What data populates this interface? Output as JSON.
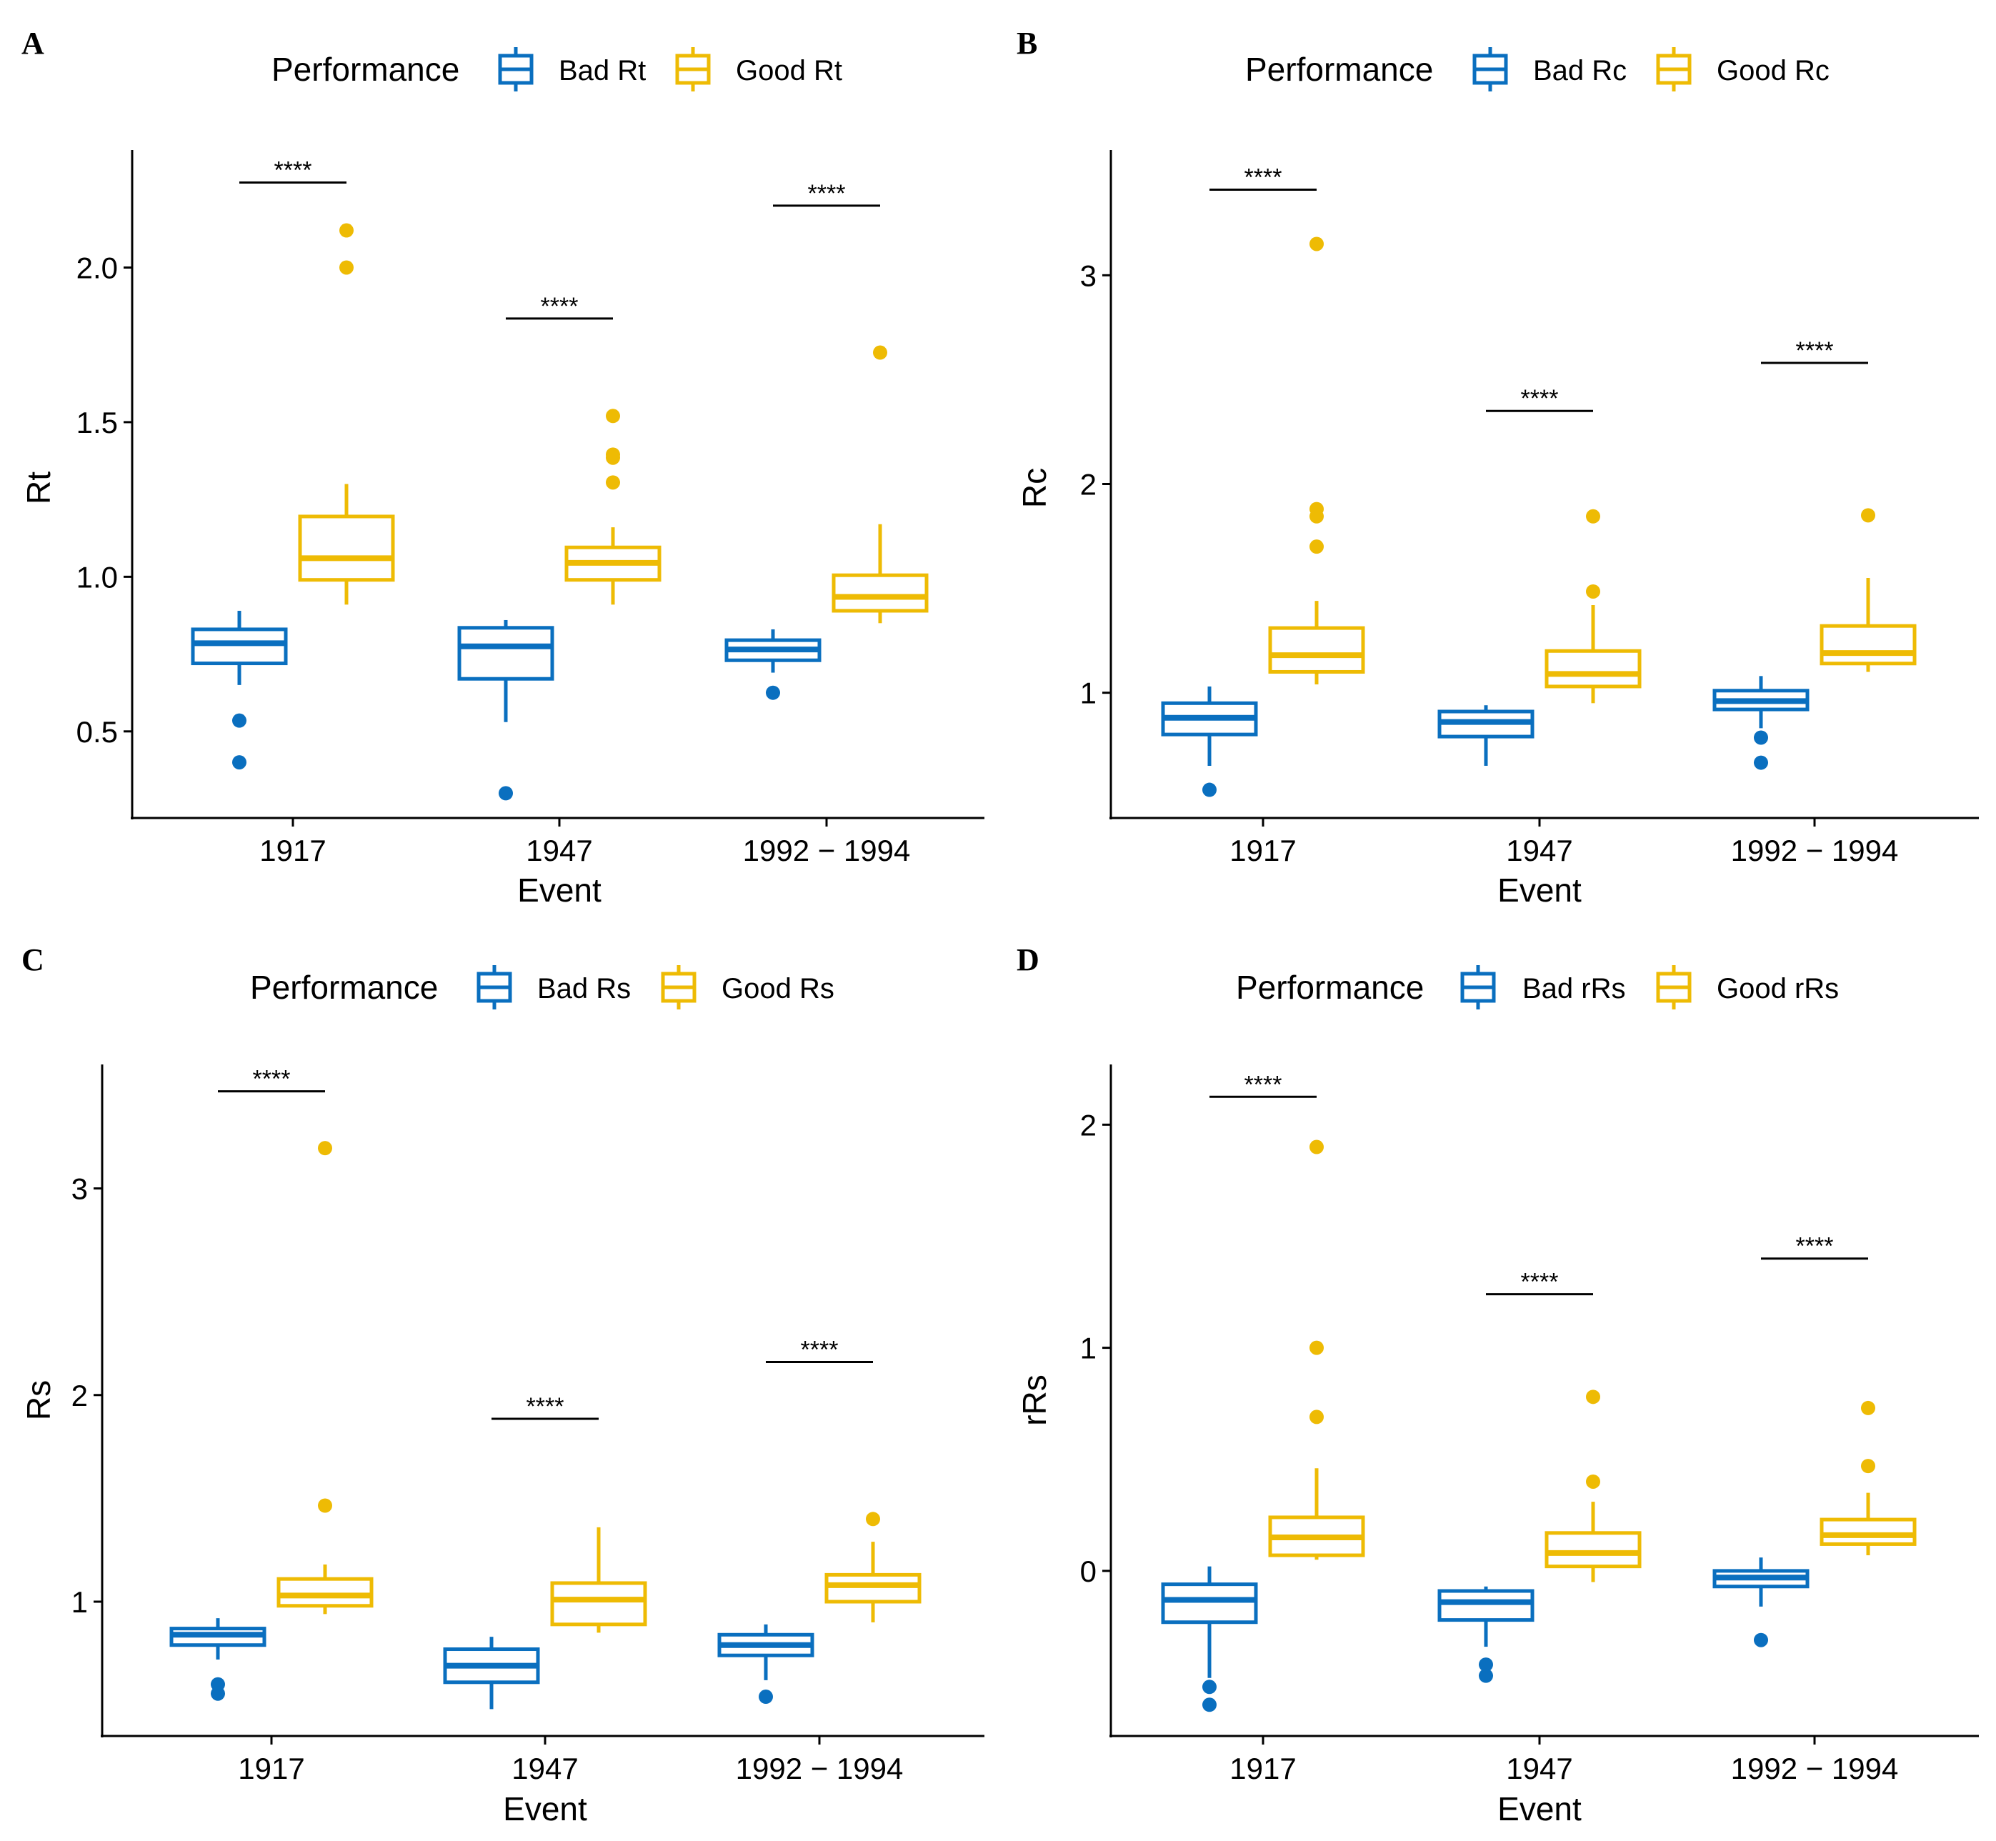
{
  "colors": {
    "bad": "#0a6fbf",
    "good": "#eebb04",
    "axis": "#000000"
  },
  "chart_data": [
    {
      "panel": "A",
      "type": "box",
      "legend_title": "Performance",
      "legend_items": [
        "Bad Rt",
        "Good Rt"
      ],
      "xlabel": "Event",
      "ylabel": "Rt",
      "categories": [
        "1917",
        "1947",
        "1992 − 1994"
      ],
      "ylim": [
        0.22,
        2.38
      ],
      "yticks": [
        0.5,
        1.0,
        1.5,
        2.0
      ],
      "ytick_labels": [
        "0.5",
        "1.0",
        "1.5",
        "2.0"
      ],
      "series": [
        {
          "name": "Bad Rt",
          "boxes": [
            {
              "q1": 0.72,
              "median": 0.785,
              "q3": 0.83,
              "lo": 0.65,
              "hi": 0.89,
              "outliers": [
                0.535,
                0.4
              ]
            },
            {
              "q1": 0.67,
              "median": 0.775,
              "q3": 0.835,
              "lo": 0.53,
              "hi": 0.86,
              "outliers": [
                0.3
              ]
            },
            {
              "q1": 0.73,
              "median": 0.765,
              "q3": 0.795,
              "lo": 0.69,
              "hi": 0.83,
              "outliers": [
                0.625
              ]
            }
          ]
        },
        {
          "name": "Good Rt",
          "boxes": [
            {
              "q1": 0.99,
              "median": 1.06,
              "q3": 1.195,
              "lo": 0.91,
              "hi": 1.3,
              "outliers": [
                2.12,
                2.0
              ]
            },
            {
              "q1": 0.99,
              "median": 1.045,
              "q3": 1.095,
              "lo": 0.91,
              "hi": 1.16,
              "outliers": [
                1.52,
                1.395,
                1.385,
                1.305
              ]
            },
            {
              "q1": 0.89,
              "median": 0.935,
              "q3": 1.005,
              "lo": 0.85,
              "hi": 1.17,
              "outliers": [
                1.725
              ]
            }
          ]
        }
      ],
      "significance": [
        {
          "label": "****",
          "y": 2.275
        },
        {
          "label": "****",
          "y": 1.835
        },
        {
          "label": "****",
          "y": 2.2
        }
      ]
    },
    {
      "panel": "B",
      "type": "box",
      "legend_title": "Performance",
      "legend_items": [
        "Bad Rc",
        "Good Rc"
      ],
      "xlabel": "Event",
      "ylabel": "Rc",
      "categories": [
        "1917",
        "1947",
        "1992 − 1994"
      ],
      "ylim": [
        0.4,
        3.6
      ],
      "yticks": [
        1,
        2,
        3
      ],
      "ytick_labels": [
        "1",
        "2",
        "3"
      ],
      "series": [
        {
          "name": "Bad Rc",
          "boxes": [
            {
              "q1": 0.8,
              "median": 0.88,
              "q3": 0.95,
              "lo": 0.65,
              "hi": 1.03,
              "outliers": [
                0.535
              ]
            },
            {
              "q1": 0.79,
              "median": 0.86,
              "q3": 0.91,
              "lo": 0.65,
              "hi": 0.94,
              "outliers": []
            },
            {
              "q1": 0.92,
              "median": 0.96,
              "q3": 1.01,
              "lo": 0.83,
              "hi": 1.08,
              "outliers": [
                0.785,
                0.665
              ]
            }
          ]
        },
        {
          "name": "Good Rc",
          "boxes": [
            {
              "q1": 1.1,
              "median": 1.18,
              "q3": 1.31,
              "lo": 1.04,
              "hi": 1.44,
              "outliers": [
                3.15,
                1.88,
                1.845,
                1.7
              ]
            },
            {
              "q1": 1.03,
              "median": 1.09,
              "q3": 1.2,
              "lo": 0.95,
              "hi": 1.42,
              "outliers": [
                1.845,
                1.485
              ]
            },
            {
              "q1": 1.14,
              "median": 1.19,
              "q3": 1.32,
              "lo": 1.1,
              "hi": 1.55,
              "outliers": [
                1.85
              ]
            }
          ]
        }
      ],
      "significance": [
        {
          "label": "****",
          "y": 3.41
        },
        {
          "label": "****",
          "y": 2.35
        },
        {
          "label": "****",
          "y": 2.58
        }
      ]
    },
    {
      "panel": "C",
      "type": "box",
      "legend_title": "Performance",
      "legend_items": [
        "Bad Rs",
        "Good Rs"
      ],
      "xlabel": "Event",
      "ylabel": "Rs",
      "categories": [
        "1917",
        "1947",
        "1992 − 1994"
      ],
      "ylim": [
        0.35,
        3.6
      ],
      "yticks": [
        1,
        2,
        3
      ],
      "ytick_labels": [
        "1",
        "2",
        "3"
      ],
      "series": [
        {
          "name": "Bad Rs",
          "boxes": [
            {
              "q1": 0.79,
              "median": 0.84,
              "q3": 0.87,
              "lo": 0.72,
              "hi": 0.92,
              "outliers": [
                0.6,
                0.555
              ]
            },
            {
              "q1": 0.61,
              "median": 0.69,
              "q3": 0.77,
              "lo": 0.48,
              "hi": 0.83,
              "outliers": []
            },
            {
              "q1": 0.74,
              "median": 0.79,
              "q3": 0.84,
              "lo": 0.62,
              "hi": 0.89,
              "outliers": [
                0.54
              ]
            }
          ]
        },
        {
          "name": "Good Rs",
          "boxes": [
            {
              "q1": 0.98,
              "median": 1.03,
              "q3": 1.11,
              "lo": 0.94,
              "hi": 1.18,
              "outliers": [
                3.195,
                1.465
              ]
            },
            {
              "q1": 0.89,
              "median": 1.01,
              "q3": 1.09,
              "lo": 0.85,
              "hi": 1.36,
              "outliers": []
            },
            {
              "q1": 1.0,
              "median": 1.08,
              "q3": 1.13,
              "lo": 0.9,
              "hi": 1.29,
              "outliers": [
                1.4
              ]
            }
          ]
        }
      ],
      "significance": [
        {
          "label": "****",
          "y": 3.47
        },
        {
          "label": "****",
          "y": 1.885
        },
        {
          "label": "****",
          "y": 2.16
        }
      ]
    },
    {
      "panel": "D",
      "type": "box",
      "legend_title": "Performance",
      "legend_items": [
        "Bad rRs",
        "Good rRs"
      ],
      "xlabel": "Event",
      "ylabel": "rRs",
      "categories": [
        "1917",
        "1947",
        "1992 − 1994"
      ],
      "ylim": [
        -0.74,
        2.27
      ],
      "yticks": [
        0,
        1,
        2
      ],
      "ytick_labels": [
        "0",
        "1",
        "2"
      ],
      "series": [
        {
          "name": "Bad rRs",
          "boxes": [
            {
              "q1": -0.23,
              "median": -0.13,
              "q3": -0.06,
              "lo": -0.48,
              "hi": 0.02,
              "outliers": [
                -0.52,
                -0.6
              ]
            },
            {
              "q1": -0.22,
              "median": -0.14,
              "q3": -0.09,
              "lo": -0.34,
              "hi": -0.07,
              "outliers": [
                -0.42,
                -0.47
              ]
            },
            {
              "q1": -0.07,
              "median": -0.03,
              "q3": 0.0,
              "lo": -0.16,
              "hi": 0.06,
              "outliers": [
                -0.31
              ]
            }
          ]
        },
        {
          "name": "Good rRs",
          "boxes": [
            {
              "q1": 0.07,
              "median": 0.15,
              "q3": 0.24,
              "lo": 0.05,
              "hi": 0.46,
              "outliers": [
                1.9,
                1.0,
                0.69
              ]
            },
            {
              "q1": 0.02,
              "median": 0.08,
              "q3": 0.17,
              "lo": -0.05,
              "hi": 0.31,
              "outliers": [
                0.78,
                0.4
              ]
            },
            {
              "q1": 0.12,
              "median": 0.16,
              "q3": 0.23,
              "lo": 0.07,
              "hi": 0.35,
              "outliers": [
                0.73,
                0.47
              ]
            }
          ]
        }
      ],
      "significance": [
        {
          "label": "****",
          "y": 2.125
        },
        {
          "label": "****",
          "y": 1.24
        },
        {
          "label": "****",
          "y": 1.4
        }
      ]
    }
  ]
}
